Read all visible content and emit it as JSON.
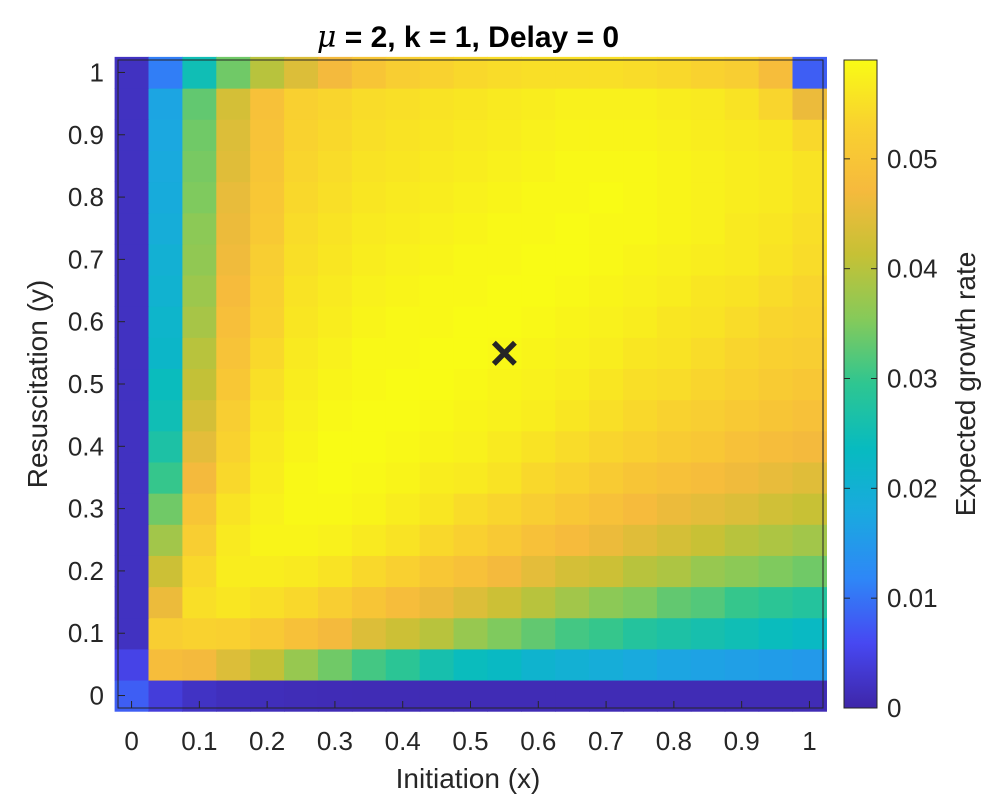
{
  "chart_data": {
    "type": "heatmap",
    "title": {
      "symbol": "μ",
      "rest": " = 2, k = 1, Delay = 0"
    },
    "xlabel": "Initiation (x)",
    "ylabel": "Resuscitation (y)",
    "colorbar_label": "Expected growth rate",
    "xlim": [
      -0.02,
      1.02
    ],
    "ylim": [
      -0.02,
      1.02
    ],
    "grid_n": 21,
    "grid_step": 0.05,
    "x_ticks": [
      "0",
      "0.1",
      "0.2",
      "0.3",
      "0.4",
      "0.5",
      "0.6",
      "0.7",
      "0.8",
      "0.9",
      "1"
    ],
    "y_ticks": [
      "0",
      "0.1",
      "0.2",
      "0.3",
      "0.4",
      "0.5",
      "0.6",
      "0.7",
      "0.8",
      "0.9",
      "1"
    ],
    "colorbar_range": [
      0,
      0.059
    ],
    "colorbar_ticks": [
      "0",
      "0.01",
      "0.02",
      "0.03",
      "0.04",
      "0.05"
    ],
    "colormap": "parula",
    "colormap_stops": [
      "#3e26a8",
      "#4748f2",
      "#2e87f7",
      "#1aa9df",
      "#07bbc0",
      "#2ec691",
      "#85ca5a",
      "#c6c135",
      "#f6ba3d",
      "#f9d22f",
      "#f9fb15"
    ],
    "marker": {
      "symbol": "×",
      "x": 0.55,
      "y": 0.55,
      "color": "#ff0000"
    },
    "values": [
      [
        0.008,
        0.004,
        0.0022,
        0.0016,
        0.0014,
        0.0012,
        0.0011,
        0.001,
        0.001,
        0.001,
        0.001,
        0.001,
        0.001,
        0.001,
        0.001,
        0.001,
        0.001,
        0.001,
        0.001,
        0.001,
        0.001
      ],
      [
        0.005,
        0.048,
        0.047,
        0.044,
        0.041,
        0.037,
        0.034,
        0.031,
        0.029,
        0.026,
        0.024,
        0.023,
        0.021,
        0.02,
        0.019,
        0.018,
        0.017,
        0.0165,
        0.016,
        0.0155,
        0.015
      ],
      [
        0.002,
        0.052,
        0.053,
        0.0525,
        0.051,
        0.049,
        0.047,
        0.044,
        0.042,
        0.04,
        0.037,
        0.035,
        0.033,
        0.031,
        0.03,
        0.028,
        0.027,
        0.026,
        0.025,
        0.024,
        0.023
      ],
      [
        0.002,
        0.046,
        0.055,
        0.056,
        0.055,
        0.054,
        0.052,
        0.05,
        0.048,
        0.046,
        0.044,
        0.042,
        0.04,
        0.038,
        0.036,
        0.035,
        0.033,
        0.032,
        0.03,
        0.029,
        0.028
      ],
      [
        0.002,
        0.042,
        0.054,
        0.057,
        0.057,
        0.0565,
        0.0555,
        0.054,
        0.0525,
        0.0505,
        0.049,
        0.047,
        0.045,
        0.043,
        0.042,
        0.04,
        0.039,
        0.037,
        0.036,
        0.035,
        0.034
      ],
      [
        0.002,
        0.038,
        0.052,
        0.0565,
        0.058,
        0.058,
        0.0575,
        0.0565,
        0.0555,
        0.054,
        0.0525,
        0.051,
        0.049,
        0.0475,
        0.046,
        0.0445,
        0.043,
        0.0415,
        0.04,
        0.039,
        0.038
      ],
      [
        0.002,
        0.034,
        0.05,
        0.0555,
        0.0575,
        0.0585,
        0.0585,
        0.058,
        0.057,
        0.056,
        0.0545,
        0.0535,
        0.052,
        0.0505,
        0.049,
        0.0475,
        0.046,
        0.045,
        0.044,
        0.0425,
        0.0415
      ],
      [
        0.002,
        0.03,
        0.047,
        0.054,
        0.057,
        0.0585,
        0.059,
        0.0585,
        0.058,
        0.057,
        0.0565,
        0.0555,
        0.054,
        0.053,
        0.0515,
        0.05,
        0.049,
        0.048,
        0.0465,
        0.0455,
        0.0445
      ],
      [
        0.002,
        0.027,
        0.045,
        0.053,
        0.0565,
        0.058,
        0.059,
        0.059,
        0.0585,
        0.058,
        0.0575,
        0.0565,
        0.0555,
        0.0545,
        0.0535,
        0.0525,
        0.0515,
        0.0505,
        0.049,
        0.048,
        0.047
      ],
      [
        0.002,
        0.025,
        0.043,
        0.052,
        0.056,
        0.0575,
        0.0585,
        0.059,
        0.059,
        0.0585,
        0.058,
        0.0575,
        0.057,
        0.056,
        0.055,
        0.054,
        0.053,
        0.052,
        0.051,
        0.05,
        0.049
      ],
      [
        0.002,
        0.024,
        0.041,
        0.0505,
        0.055,
        0.057,
        0.058,
        0.0585,
        0.059,
        0.059,
        0.0585,
        0.058,
        0.0575,
        0.057,
        0.056,
        0.055,
        0.0545,
        0.0535,
        0.0525,
        0.0515,
        0.0505
      ],
      [
        0.002,
        0.022,
        0.04,
        0.0495,
        0.054,
        0.0565,
        0.0575,
        0.0585,
        0.0585,
        0.059,
        0.059,
        0.0585,
        0.058,
        0.0575,
        0.057,
        0.056,
        0.0555,
        0.0545,
        0.0535,
        0.0525,
        0.052
      ],
      [
        0.002,
        0.0215,
        0.0385,
        0.0485,
        0.053,
        0.056,
        0.057,
        0.058,
        0.0585,
        0.0585,
        0.059,
        0.059,
        0.0585,
        0.058,
        0.0575,
        0.057,
        0.056,
        0.0555,
        0.0545,
        0.0535,
        0.053
      ],
      [
        0.002,
        0.0205,
        0.0375,
        0.0475,
        0.0525,
        0.0555,
        0.0565,
        0.0575,
        0.058,
        0.0585,
        0.0585,
        0.059,
        0.059,
        0.0585,
        0.058,
        0.0575,
        0.057,
        0.056,
        0.0555,
        0.0545,
        0.0535
      ],
      [
        0.002,
        0.02,
        0.0365,
        0.0465,
        0.052,
        0.055,
        0.056,
        0.057,
        0.0575,
        0.058,
        0.0585,
        0.0585,
        0.059,
        0.059,
        0.0585,
        0.058,
        0.0575,
        0.057,
        0.0565,
        0.0555,
        0.0545
      ],
      [
        0.002,
        0.019,
        0.036,
        0.046,
        0.051,
        0.0545,
        0.0555,
        0.0565,
        0.057,
        0.0575,
        0.058,
        0.0585,
        0.0585,
        0.059,
        0.0585,
        0.0585,
        0.058,
        0.0575,
        0.0565,
        0.056,
        0.055
      ],
      [
        0.002,
        0.0185,
        0.035,
        0.0455,
        0.0505,
        0.054,
        0.055,
        0.056,
        0.0565,
        0.057,
        0.0575,
        0.058,
        0.0585,
        0.0585,
        0.059,
        0.0585,
        0.058,
        0.0575,
        0.057,
        0.0565,
        0.0555
      ],
      [
        0.002,
        0.018,
        0.0345,
        0.0445,
        0.05,
        0.0535,
        0.0545,
        0.0555,
        0.056,
        0.0565,
        0.057,
        0.0575,
        0.058,
        0.0585,
        0.0585,
        0.0585,
        0.058,
        0.0575,
        0.057,
        0.0565,
        0.0555
      ],
      [
        0.002,
        0.0175,
        0.034,
        0.044,
        0.0495,
        0.053,
        0.054,
        0.055,
        0.0555,
        0.056,
        0.0565,
        0.057,
        0.0575,
        0.058,
        0.058,
        0.058,
        0.0575,
        0.057,
        0.0565,
        0.056,
        0.054
      ],
      [
        0.002,
        0.017,
        0.033,
        0.043,
        0.049,
        0.0525,
        0.0535,
        0.0545,
        0.055,
        0.0555,
        0.056,
        0.0565,
        0.057,
        0.0575,
        0.0575,
        0.0575,
        0.057,
        0.0565,
        0.0555,
        0.0535,
        0.046
      ],
      [
        0.002,
        0.011,
        0.025,
        0.034,
        0.04,
        0.044,
        0.047,
        0.05,
        0.052,
        0.053,
        0.054,
        0.0545,
        0.055,
        0.055,
        0.055,
        0.0545,
        0.054,
        0.053,
        0.052,
        0.048,
        0.008
      ]
    ]
  }
}
